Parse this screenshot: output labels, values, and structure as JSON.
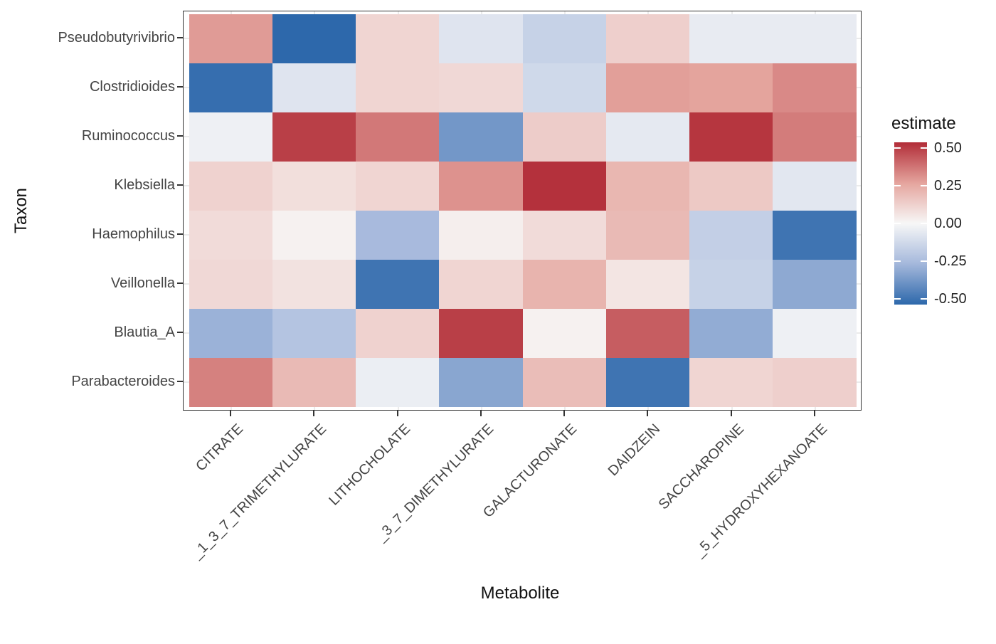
{
  "chart_data": {
    "type": "heatmap",
    "title": "",
    "xlabel": "Metabolite",
    "ylabel": "Taxon",
    "x_categories": [
      "CITRATE",
      "_1_3_7_TRIMETHYLURATE",
      "LITHOCHOLATE",
      "_3_7_DIMETHYLURATE",
      "GALACTURONATE",
      "DAIDZEIN",
      "SACCHAROPINE",
      "_5_HYDROXYHEXANOATE"
    ],
    "y_categories": [
      "Pseudobutyrivibrio",
      "Clostridioides",
      "Ruminococcus",
      "Klebsiella",
      "Haemophilus",
      "Veillonella",
      "Blautia_A",
      "Parabacteroides"
    ],
    "values": [
      [
        0.29,
        -0.54,
        0.11,
        -0.08,
        -0.16,
        0.13,
        -0.05,
        -0.05
      ],
      [
        -0.52,
        -0.08,
        0.11,
        0.1,
        -0.13,
        0.28,
        0.27,
        0.33
      ],
      [
        -0.03,
        0.5,
        0.37,
        -0.38,
        0.14,
        -0.06,
        0.52,
        0.36
      ],
      [
        0.12,
        0.08,
        0.11,
        0.31,
        0.53,
        0.21,
        0.15,
        -0.07
      ],
      [
        0.09,
        0.02,
        -0.26,
        0.03,
        0.09,
        0.2,
        -0.17,
        -0.5
      ],
      [
        0.1,
        0.07,
        -0.5,
        0.11,
        0.22,
        0.06,
        -0.16,
        -0.32
      ],
      [
        -0.29,
        -0.22,
        0.12,
        0.5,
        0.02,
        0.43,
        -0.31,
        -0.03
      ],
      [
        0.35,
        0.2,
        -0.04,
        -0.33,
        0.19,
        -0.5,
        0.11,
        0.13
      ]
    ],
    "legend": {
      "title": "estimate",
      "position": "right",
      "tick_labels": [
        "0.50",
        "0.25",
        "0.00",
        "-0.25",
        "-0.50"
      ],
      "tick_values": [
        0.5,
        0.25,
        0.0,
        -0.25,
        -0.5
      ],
      "vmin": -0.54,
      "vmax": 0.54
    },
    "colorscale": {
      "stops": [
        {
          "v": -0.54,
          "color": "#2D68AB"
        },
        {
          "v": -0.265,
          "color": "#A6B9DC"
        },
        {
          "v": 0.0,
          "color": "#F7F7F7"
        },
        {
          "v": 0.265,
          "color": "#E5A69F"
        },
        {
          "v": 0.54,
          "color": "#B22D38"
        }
      ]
    },
    "grid": true,
    "panel_border_color": "#333333",
    "gridline_color": "#EBEBEB",
    "tick_label_color": "#444444",
    "axis_title_color": "#111111"
  }
}
